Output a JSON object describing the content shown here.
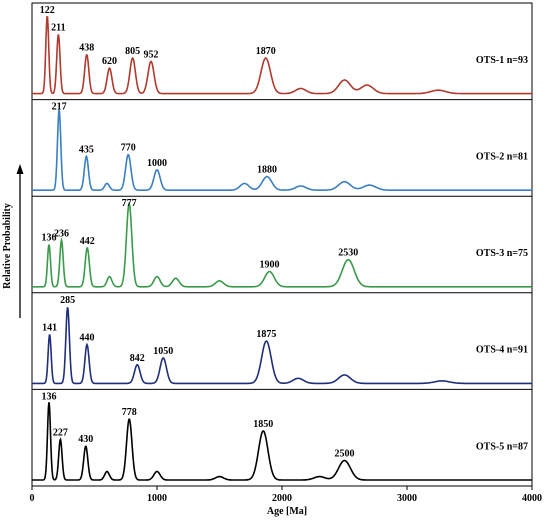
{
  "chart_data": {
    "type": "line",
    "xlabel": "Age [Ma]",
    "ylabel": "Relative Probability",
    "xlim": [
      0,
      4000
    ],
    "xticks": [
      0,
      1000,
      2000,
      3000,
      4000
    ],
    "panels": [
      {
        "label": "OTS-1 n=93",
        "color": "#b03a2e",
        "peaks": [
          {
            "age": 122,
            "label": "122",
            "h": 0.92
          },
          {
            "age": 211,
            "label": "211",
            "h": 0.7
          },
          {
            "age": 438,
            "label": "438",
            "h": 0.46
          },
          {
            "age": 620,
            "label": "620",
            "h": 0.3
          },
          {
            "age": 805,
            "label": "805",
            "h": 0.42
          },
          {
            "age": 952,
            "label": "952",
            "h": 0.38
          },
          {
            "age": 1870,
            "label": "1870",
            "h": 0.42
          }
        ],
        "minor": [
          {
            "age": 2150,
            "h": 0.06
          },
          {
            "age": 2500,
            "h": 0.16
          },
          {
            "age": 2680,
            "h": 0.1
          },
          {
            "age": 3250,
            "h": 0.04
          }
        ]
      },
      {
        "label": "OTS-2 n=81",
        "color": "#3a7fc1",
        "peaks": [
          {
            "age": 217,
            "label": "217",
            "h": 0.95
          },
          {
            "age": 435,
            "label": "435",
            "h": 0.4
          },
          {
            "age": 770,
            "label": "770",
            "h": 0.42
          },
          {
            "age": 1000,
            "label": "1000",
            "h": 0.24
          },
          {
            "age": 1880,
            "label": "1880",
            "h": 0.16
          }
        ],
        "minor": [
          {
            "age": 600,
            "h": 0.08
          },
          {
            "age": 1700,
            "h": 0.08
          },
          {
            "age": 2150,
            "h": 0.05
          },
          {
            "age": 2500,
            "h": 0.1
          },
          {
            "age": 2700,
            "h": 0.06
          }
        ]
      },
      {
        "label": "OTS-3 n=75",
        "color": "#3a9a4a",
        "peaks": [
          {
            "age": 136,
            "label": "136",
            "h": 0.5
          },
          {
            "age": 236,
            "label": "236",
            "h": 0.55
          },
          {
            "age": 442,
            "label": "442",
            "h": 0.46
          },
          {
            "age": 777,
            "label": "777",
            "h": 0.98
          },
          {
            "age": 1900,
            "label": "1900",
            "h": 0.18
          },
          {
            "age": 2530,
            "label": "2530",
            "h": 0.32
          }
        ],
        "minor": [
          {
            "age": 1000,
            "h": 0.12
          },
          {
            "age": 1150,
            "h": 0.1
          },
          {
            "age": 1500,
            "h": 0.07
          },
          {
            "age": 620,
            "h": 0.12
          }
        ]
      },
      {
        "label": "OTS-4 n=91",
        "color": "#1f2f7a",
        "peaks": [
          {
            "age": 141,
            "label": "141",
            "h": 0.58
          },
          {
            "age": 285,
            "label": "285",
            "h": 0.9
          },
          {
            "age": 440,
            "label": "440",
            "h": 0.46
          },
          {
            "age": 842,
            "label": "842",
            "h": 0.22
          },
          {
            "age": 1050,
            "label": "1050",
            "h": 0.3
          },
          {
            "age": 1875,
            "label": "1875",
            "h": 0.5
          }
        ],
        "minor": [
          {
            "age": 2130,
            "h": 0.06
          },
          {
            "age": 2500,
            "h": 0.1
          },
          {
            "age": 3280,
            "h": 0.03
          }
        ]
      },
      {
        "label": "OTS-5 n=87",
        "color": "#000000",
        "peaks": [
          {
            "age": 136,
            "label": "136",
            "h": 0.92
          },
          {
            "age": 227,
            "label": "227",
            "h": 0.48
          },
          {
            "age": 430,
            "label": "430",
            "h": 0.4
          },
          {
            "age": 778,
            "label": "778",
            "h": 0.72
          },
          {
            "age": 1850,
            "label": "1850",
            "h": 0.58
          },
          {
            "age": 2500,
            "label": "2500",
            "h": 0.23
          }
        ],
        "minor": [
          {
            "age": 600,
            "h": 0.1
          },
          {
            "age": 1000,
            "h": 0.1
          },
          {
            "age": 1500,
            "h": 0.04
          },
          {
            "age": 2300,
            "h": 0.04
          }
        ]
      }
    ]
  }
}
